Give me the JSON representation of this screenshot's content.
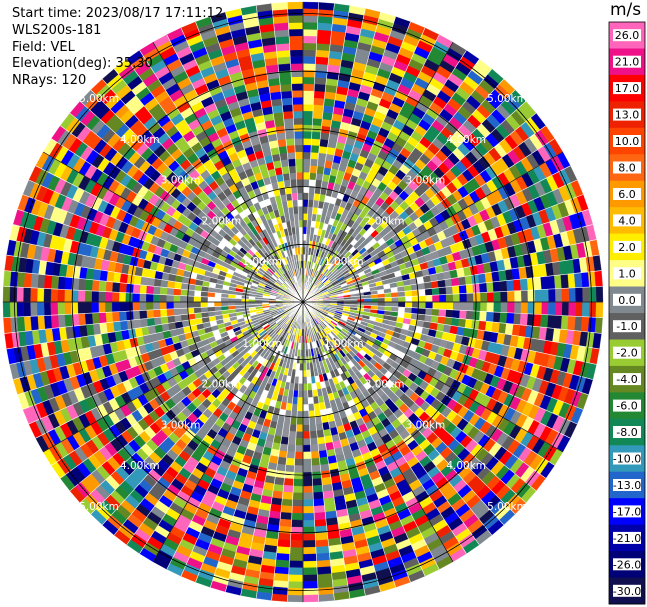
{
  "header": {
    "start_time": "Start time: 2023/08/17 17:11:12",
    "instrument": "WLS200s-181",
    "field": "Field: VEL",
    "elevation": "Elevation(deg): 35.30",
    "nrays": "NRays: 120"
  },
  "chart_data": {
    "type": "heatmap",
    "projection": "polar-ppi",
    "field": "VEL",
    "nrays": 120,
    "units": "m/s",
    "range_rings_km": [
      {
        "value": 1,
        "label": "1.00km"
      },
      {
        "value": 2,
        "label": "2.00km"
      },
      {
        "value": 3,
        "label": "3.00km"
      },
      {
        "value": 4,
        "label": "4.00km"
      },
      {
        "value": 5,
        "label": "5.00km"
      }
    ],
    "max_range_km": 5.2,
    "colorbar": {
      "title": "m/s",
      "ticks": [
        "26.0",
        "21.0",
        "17.0",
        "13.0",
        "10.0",
        "8.0",
        "6.0",
        "4.0",
        "2.0",
        "1.0",
        "0.0",
        "-1.0",
        "-2.0",
        "-4.0",
        "-6.0",
        "-8.0",
        "-10.0",
        "-13.0",
        "-17.0",
        "-21.0",
        "-26.0",
        "-30.0"
      ],
      "colors": [
        "#ff66bb",
        "#ee1188",
        "#ff0000",
        "#ee2200",
        "#ff4400",
        "#ff6611",
        "#ff9900",
        "#ffbb00",
        "#ffee00",
        "#ffff88",
        "#808890",
        "#606060",
        "#99cc33",
        "#668822",
        "#228833",
        "#118855",
        "#3399bb",
        "#2266cc",
        "#0000ff",
        "#0000aa",
        "#000077",
        "#101050"
      ]
    }
  }
}
